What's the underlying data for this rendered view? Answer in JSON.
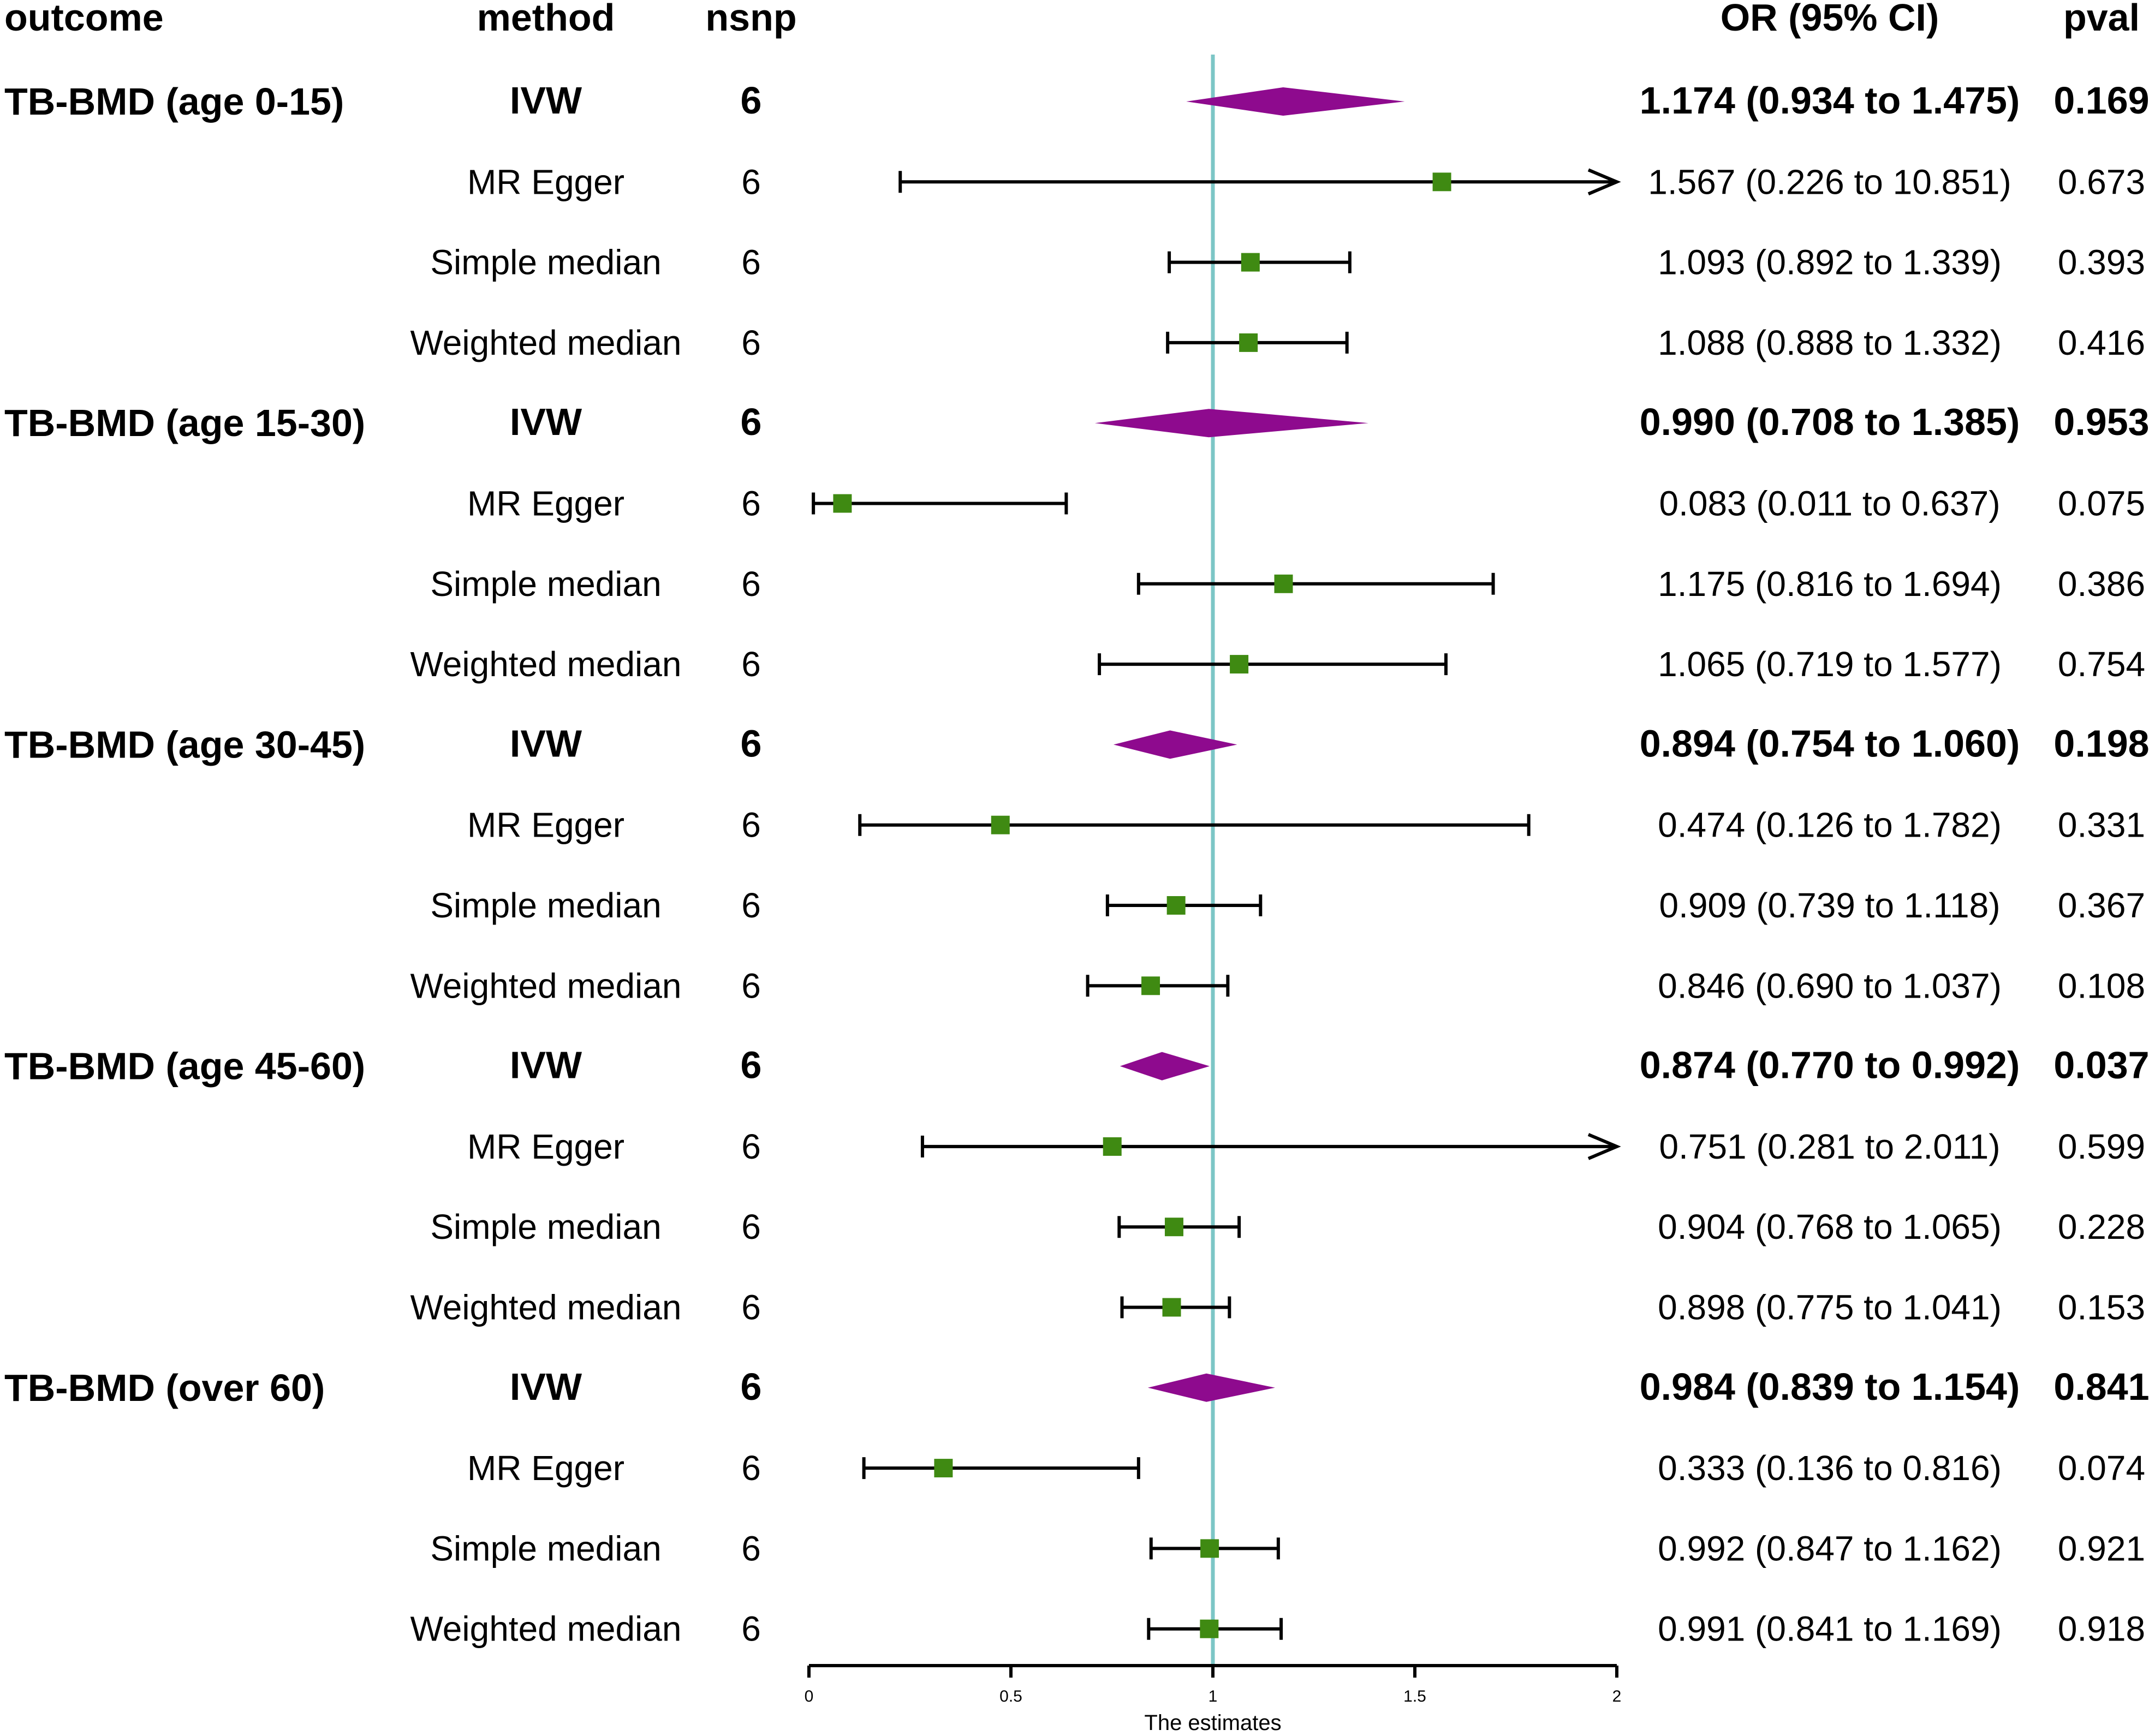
{
  "chart_data": {
    "type": "forest",
    "headers": {
      "outcome": "outcome",
      "method": "method",
      "nsnp": "nsnp",
      "or_ci": "OR (95% CI)",
      "pval": "pval"
    },
    "xlabel": "The estimates",
    "xlim": [
      0,
      2
    ],
    "xticks": [
      "0",
      "0.5",
      "1",
      "1.5",
      "2"
    ],
    "reference_line": 1,
    "colors": {
      "diamond": "#8e0a8e",
      "square": "#3f8a12",
      "refline": "#7cc6c6",
      "text": "#000000"
    },
    "rows": [
      {
        "outcome": "TB-BMD (age 0-15)",
        "method": "IVW",
        "nsnp": "6",
        "or": 1.174,
        "lo": 0.934,
        "hi": 1.475,
        "or_ci": "1.174 (0.934 to 1.475)",
        "pval": "0.169",
        "summary": true
      },
      {
        "outcome": "",
        "method": "MR Egger",
        "nsnp": "6",
        "or": 1.567,
        "lo": 0.226,
        "hi": 10.851,
        "or_ci": "1.567 (0.226 to 10.851)",
        "pval": "0.673",
        "summary": false
      },
      {
        "outcome": "",
        "method": "Simple median",
        "nsnp": "6",
        "or": 1.093,
        "lo": 0.892,
        "hi": 1.339,
        "or_ci": "1.093 (0.892 to 1.339)",
        "pval": "0.393",
        "summary": false
      },
      {
        "outcome": "",
        "method": "Weighted median",
        "nsnp": "6",
        "or": 1.088,
        "lo": 0.888,
        "hi": 1.332,
        "or_ci": "1.088 (0.888 to 1.332)",
        "pval": "0.416",
        "summary": false
      },
      {
        "outcome": "TB-BMD (age 15-30)",
        "method": "IVW",
        "nsnp": "6",
        "or": 0.99,
        "lo": 0.708,
        "hi": 1.385,
        "or_ci": "0.990 (0.708 to 1.385)",
        "pval": "0.953",
        "summary": true
      },
      {
        "outcome": "",
        "method": "MR Egger",
        "nsnp": "6",
        "or": 0.083,
        "lo": 0.011,
        "hi": 0.637,
        "or_ci": "0.083 (0.011 to 0.637)",
        "pval": "0.075",
        "summary": false
      },
      {
        "outcome": "",
        "method": "Simple median",
        "nsnp": "6",
        "or": 1.175,
        "lo": 0.816,
        "hi": 1.694,
        "or_ci": "1.175 (0.816 to 1.694)",
        "pval": "0.386",
        "summary": false
      },
      {
        "outcome": "",
        "method": "Weighted median",
        "nsnp": "6",
        "or": 1.065,
        "lo": 0.719,
        "hi": 1.577,
        "or_ci": "1.065 (0.719 to 1.577)",
        "pval": "0.754",
        "summary": false
      },
      {
        "outcome": "TB-BMD (age 30-45)",
        "method": "IVW",
        "nsnp": "6",
        "or": 0.894,
        "lo": 0.754,
        "hi": 1.06,
        "or_ci": "0.894 (0.754 to 1.060)",
        "pval": "0.198",
        "summary": true
      },
      {
        "outcome": "",
        "method": "MR Egger",
        "nsnp": "6",
        "or": 0.474,
        "lo": 0.126,
        "hi": 1.782,
        "or_ci": "0.474 (0.126 to 1.782)",
        "pval": "0.331",
        "summary": false
      },
      {
        "outcome": "",
        "method": "Simple median",
        "nsnp": "6",
        "or": 0.909,
        "lo": 0.739,
        "hi": 1.118,
        "or_ci": "0.909 (0.739 to 1.118)",
        "pval": "0.367",
        "summary": false
      },
      {
        "outcome": "",
        "method": "Weighted median",
        "nsnp": "6",
        "or": 0.846,
        "lo": 0.69,
        "hi": 1.037,
        "or_ci": "0.846 (0.690 to 1.037)",
        "pval": "0.108",
        "summary": false
      },
      {
        "outcome": "TB-BMD (age 45-60)",
        "method": "IVW",
        "nsnp": "6",
        "or": 0.874,
        "lo": 0.77,
        "hi": 0.992,
        "or_ci": "0.874 (0.770 to 0.992)",
        "pval": "0.037",
        "summary": true
      },
      {
        "outcome": "",
        "method": "MR Egger",
        "nsnp": "6",
        "or": 0.751,
        "lo": 0.281,
        "hi": 2.011,
        "or_ci": "0.751 (0.281 to 2.011)",
        "pval": "0.599",
        "summary": false
      },
      {
        "outcome": "",
        "method": "Simple median",
        "nsnp": "6",
        "or": 0.904,
        "lo": 0.768,
        "hi": 1.065,
        "or_ci": "0.904 (0.768 to 1.065)",
        "pval": "0.228",
        "summary": false
      },
      {
        "outcome": "",
        "method": "Weighted median",
        "nsnp": "6",
        "or": 0.898,
        "lo": 0.775,
        "hi": 1.041,
        "or_ci": "0.898 (0.775 to 1.041)",
        "pval": "0.153",
        "summary": false
      },
      {
        "outcome": "TB-BMD (over 60)",
        "method": "IVW",
        "nsnp": "6",
        "or": 0.984,
        "lo": 0.839,
        "hi": 1.154,
        "or_ci": "0.984 (0.839 to 1.154)",
        "pval": "0.841",
        "summary": true
      },
      {
        "outcome": "",
        "method": "MR Egger",
        "nsnp": "6",
        "or": 0.333,
        "lo": 0.136,
        "hi": 0.816,
        "or_ci": "0.333 (0.136 to 0.816)",
        "pval": "0.074",
        "summary": false
      },
      {
        "outcome": "",
        "method": "Simple median",
        "nsnp": "6",
        "or": 0.992,
        "lo": 0.847,
        "hi": 1.162,
        "or_ci": "0.992 (0.847 to 1.162)",
        "pval": "0.921",
        "summary": false
      },
      {
        "outcome": "",
        "method": "Weighted median",
        "nsnp": "6",
        "or": 0.991,
        "lo": 0.841,
        "hi": 1.169,
        "or_ci": "0.991 (0.841 to 1.169)",
        "pval": "0.918",
        "summary": false
      }
    ]
  }
}
